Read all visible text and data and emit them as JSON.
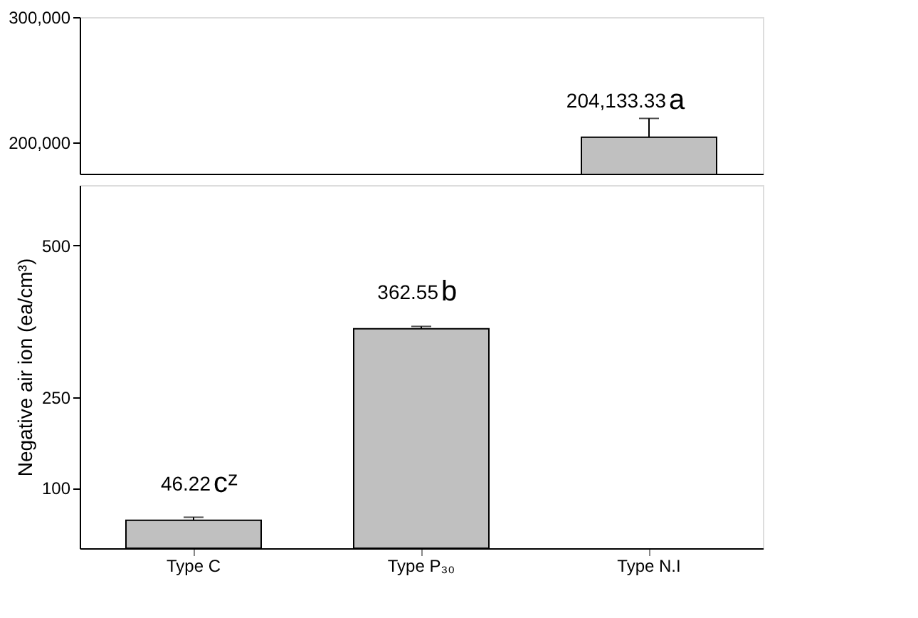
{
  "chart_data": [
    {
      "type": "bar",
      "categories": [
        "Type C",
        "Type P₃₀",
        "Type N.I"
      ],
      "values": [
        null,
        null,
        204133.33
      ],
      "errors": [
        null,
        null,
        15000
      ],
      "color": "#c0c0c0",
      "ylim": [
        175000,
        300000
      ],
      "yticks": [
        {
          "value": 200000,
          "label": "200,000"
        },
        {
          "value": 300000,
          "label": "300,000"
        }
      ],
      "tick_labels": "y",
      "grid": false,
      "value_labels": [
        null,
        null,
        "204,133.33"
      ],
      "annotations": [
        {
          "text": "a",
          "x": "Type N.I",
          "y": 204133.33
        }
      ]
    },
    {
      "type": "bar",
      "categories": [
        "Type C",
        "Type P₃₀",
        "Type N.I"
      ],
      "values": [
        46.22,
        362.55,
        null
      ],
      "errors": [
        5,
        4,
        null
      ],
      "color": "#c0c0c0",
      "ylim": [
        0,
        600
      ],
      "yticks": [
        100,
        250,
        500
      ],
      "ylabel": "Negative air ion (ea/cm³)",
      "grid": false,
      "value_labels": [
        "46.22",
        "362.55",
        null
      ],
      "annotations": [
        {
          "text": "cᶻ",
          "x": "Type C",
          "y": 46.22
        },
        {
          "text": "b",
          "x": "Type P₃₀",
          "y": 362.55
        }
      ]
    }
  ]
}
